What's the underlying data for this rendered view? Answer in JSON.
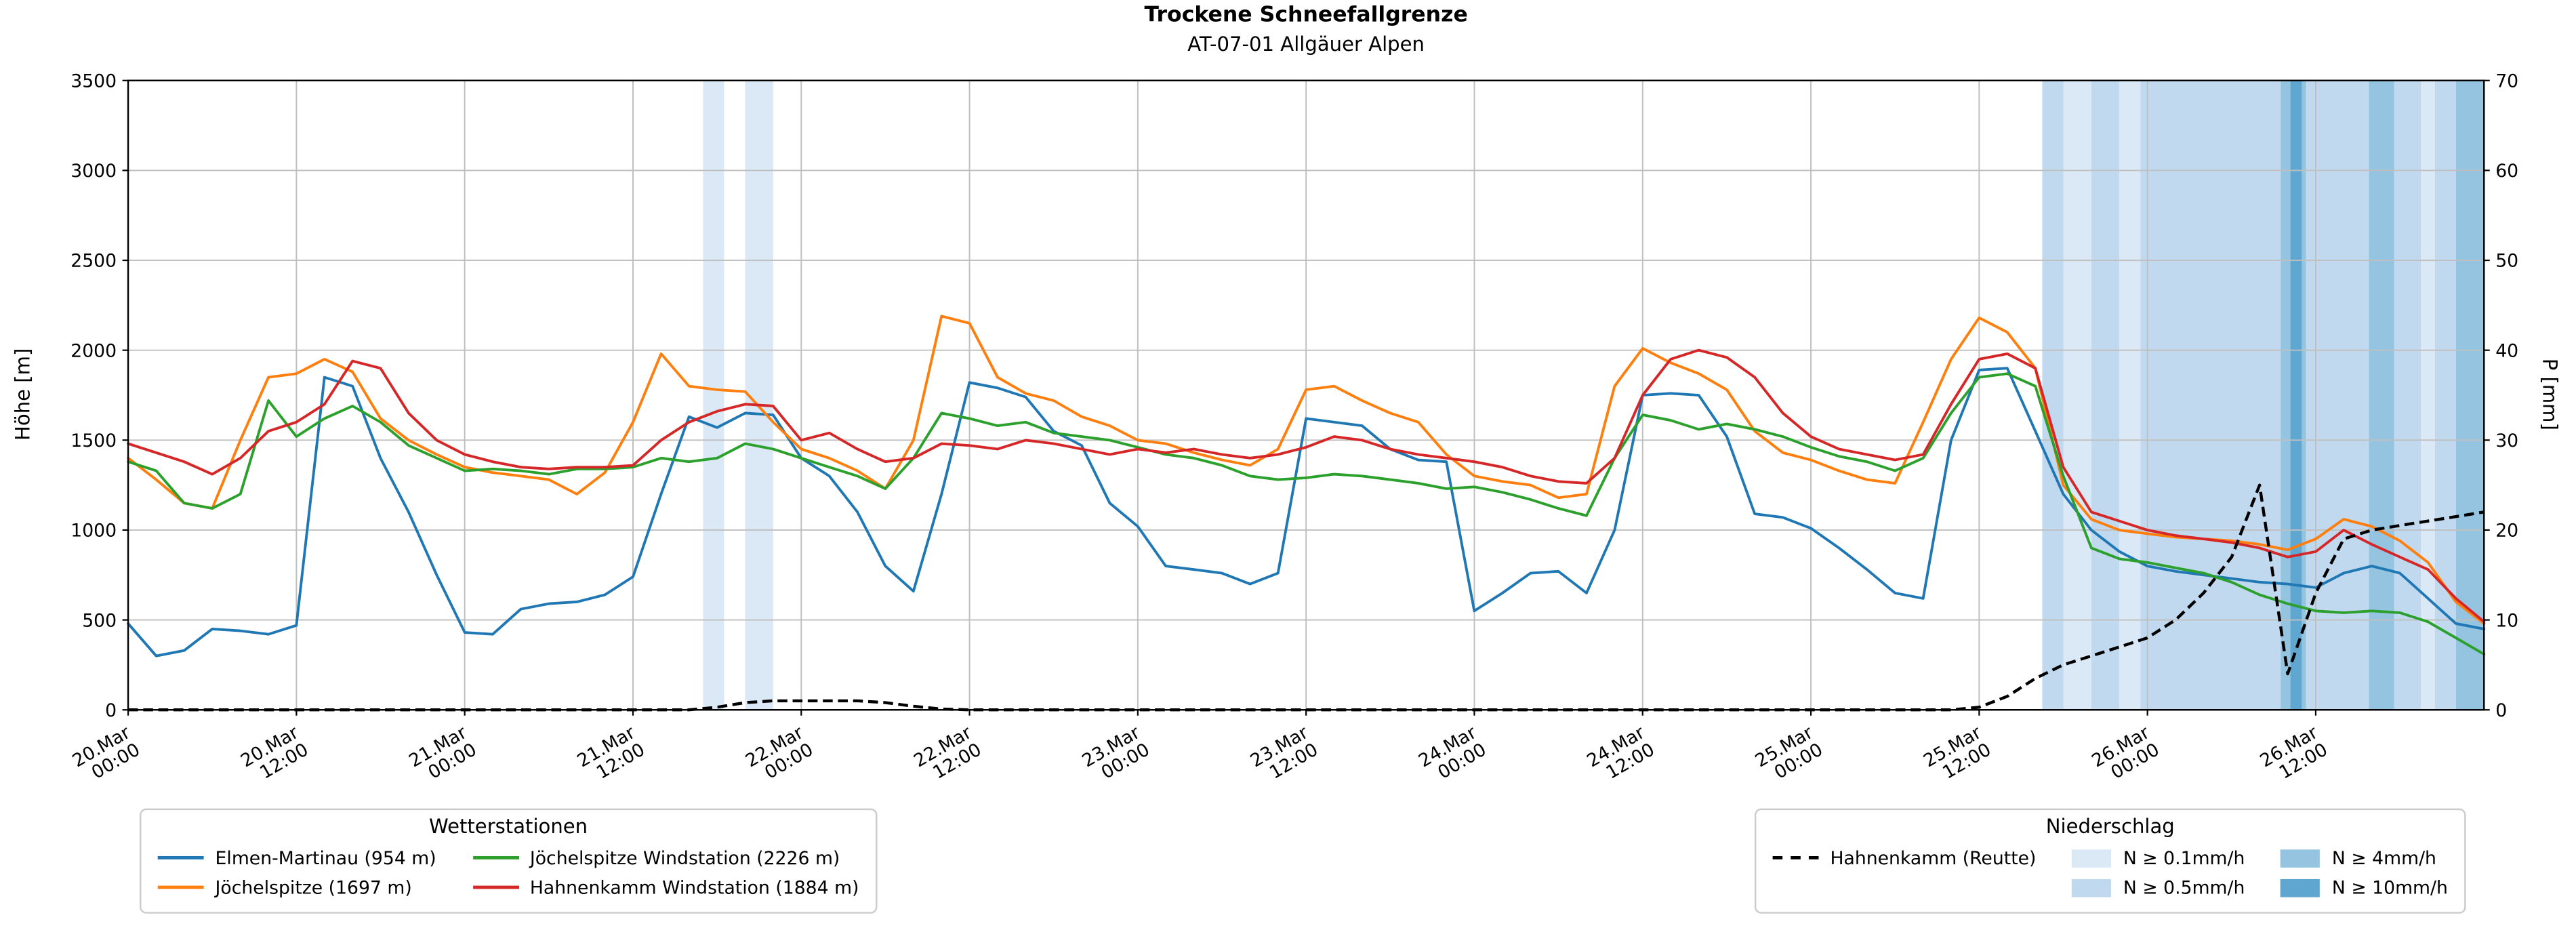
{
  "axes": {
    "y_left_label": "Höhe [m]",
    "y_right_label": "P [mm]"
  },
  "legends": {
    "stations": {
      "title": "Wetterstationen",
      "entries": [
        {
          "label": "Elmen-Martinau (954 m)",
          "color": "#1f77b4"
        },
        {
          "label": "Jöchelspitze (1697 m)",
          "color": "#ff7f0e"
        },
        {
          "label": "Jöchelspitze Windstation (2226 m)",
          "color": "#2ca02c"
        },
        {
          "label": "Hahnenkamm Windstation (1884 m)",
          "color": "#d62728"
        }
      ]
    },
    "precip": {
      "title": "Niederschlag",
      "line_entry": {
        "label": "Hahnenkamm (Reutte)",
        "color": "#000000",
        "dashed": true
      },
      "patch_entries": [
        {
          "label": "N ≥ 0.1mm/h",
          "color": "#dbe9f6"
        },
        {
          "label": "N ≥ 0.5mm/h",
          "color": "#c1d9ee"
        },
        {
          "label": "N ≥ 4mm/h",
          "color": "#94c4df"
        },
        {
          "label": "N ≥ 10mm/h",
          "color": "#5fa6d1"
        }
      ]
    }
  },
  "chart_data": {
    "type": "line",
    "title": "Trockene Schneefallgrenze",
    "subtitle": "AT-07-01 Allgäuer Alpen",
    "ylabel_left": "Höhe [m]",
    "ylabel_right": "P [mm]",
    "x_unit": "hours since 20.Mar 00:00",
    "x_start": 0,
    "x_step": 2,
    "x_range": [
      0,
      168
    ],
    "ylim_left": [
      0,
      3500
    ],
    "ylim_right": [
      0,
      70
    ],
    "y_left_ticks": [
      0,
      500,
      1000,
      1500,
      2000,
      2500,
      3000,
      3500
    ],
    "y_right_ticks": [
      0,
      10,
      20,
      30,
      40,
      50,
      60,
      70
    ],
    "grid": true,
    "x_ticks": [
      {
        "t": 0,
        "label": [
          "20.Mar",
          "00:00"
        ]
      },
      {
        "t": 12,
        "label": [
          "20.Mar",
          "12:00"
        ]
      },
      {
        "t": 24,
        "label": [
          "21.Mar",
          "00:00"
        ]
      },
      {
        "t": 36,
        "label": [
          "21.Mar",
          "12:00"
        ]
      },
      {
        "t": 48,
        "label": [
          "22.Mar",
          "00:00"
        ]
      },
      {
        "t": 60,
        "label": [
          "22.Mar",
          "12:00"
        ]
      },
      {
        "t": 72,
        "label": [
          "23.Mar",
          "00:00"
        ]
      },
      {
        "t": 84,
        "label": [
          "23.Mar",
          "12:00"
        ]
      },
      {
        "t": 96,
        "label": [
          "24.Mar",
          "00:00"
        ]
      },
      {
        "t": 108,
        "label": [
          "24.Mar",
          "12:00"
        ]
      },
      {
        "t": 120,
        "label": [
          "25.Mar",
          "00:00"
        ]
      },
      {
        "t": 132,
        "label": [
          "25.Mar",
          "12:00"
        ]
      },
      {
        "t": 144,
        "label": [
          "26.Mar",
          "00:00"
        ]
      },
      {
        "t": 156,
        "label": [
          "26.Mar",
          "12:00"
        ]
      }
    ],
    "series": [
      {
        "id": "elmen-martinau",
        "name": "Elmen-Martinau (954 m)",
        "color": "#1f77b4",
        "axis": "left",
        "values": [
          480,
          300,
          330,
          450,
          440,
          420,
          470,
          1850,
          1800,
          1400,
          1100,
          750,
          430,
          420,
          560,
          590,
          600,
          640,
          740,
          1200,
          1630,
          1570,
          1650,
          1640,
          1400,
          1300,
          1100,
          800,
          660,
          1200,
          1820,
          1790,
          1740,
          1550,
          1470,
          1150,
          1020,
          800,
          780,
          760,
          700,
          760,
          1620,
          1600,
          1580,
          1450,
          1390,
          1380,
          550,
          650,
          760,
          770,
          650,
          1000,
          1750,
          1760,
          1750,
          1520,
          1090,
          1070,
          1010,
          900,
          780,
          650,
          620,
          1500,
          1890,
          1900,
          1550,
          1200,
          1000,
          880,
          800,
          770,
          750,
          730,
          710,
          700,
          680,
          760,
          800,
          760,
          620,
          480,
          450
        ]
      },
      {
        "id": "joechelspitze",
        "name": "Jöchelspitze (1697 m)",
        "color": "#ff7f0e",
        "axis": "left",
        "values": [
          1400,
          1280,
          1150,
          1120,
          1500,
          1850,
          1870,
          1950,
          1880,
          1620,
          1500,
          1420,
          1350,
          1320,
          1300,
          1280,
          1200,
          1320,
          1600,
          1980,
          1800,
          1780,
          1770,
          1600,
          1450,
          1400,
          1330,
          1230,
          1500,
          2190,
          2150,
          1850,
          1760,
          1720,
          1630,
          1580,
          1500,
          1480,
          1430,
          1390,
          1360,
          1450,
          1780,
          1800,
          1720,
          1650,
          1600,
          1420,
          1300,
          1270,
          1250,
          1180,
          1200,
          1800,
          2010,
          1930,
          1870,
          1780,
          1550,
          1430,
          1390,
          1330,
          1280,
          1260,
          1600,
          1950,
          2180,
          2100,
          1900,
          1250,
          1060,
          1000,
          980,
          960,
          950,
          940,
          920,
          890,
          950,
          1060,
          1020,
          940,
          820,
          600,
          480
        ]
      },
      {
        "id": "joechelspitze-windstation",
        "name": "Jöchelspitze Windstation (2226 m)",
        "color": "#2ca02c",
        "axis": "left",
        "values": [
          1380,
          1330,
          1150,
          1120,
          1200,
          1720,
          1520,
          1620,
          1690,
          1600,
          1470,
          1400,
          1330,
          1340,
          1330,
          1310,
          1340,
          1340,
          1350,
          1400,
          1380,
          1400,
          1480,
          1450,
          1400,
          1350,
          1300,
          1230,
          1400,
          1650,
          1620,
          1580,
          1600,
          1540,
          1520,
          1500,
          1460,
          1420,
          1400,
          1360,
          1300,
          1280,
          1290,
          1310,
          1300,
          1280,
          1260,
          1230,
          1240,
          1210,
          1170,
          1120,
          1080,
          1400,
          1640,
          1610,
          1560,
          1590,
          1560,
          1520,
          1460,
          1410,
          1380,
          1330,
          1400,
          1650,
          1850,
          1870,
          1800,
          1300,
          900,
          840,
          820,
          790,
          760,
          710,
          640,
          590,
          550,
          540,
          550,
          540,
          490,
          400,
          310
        ]
      },
      {
        "id": "hahnenkamm-windstation",
        "name": "Hahnenkamm Windstation (1884 m)",
        "color": "#d62728",
        "axis": "left",
        "values": [
          1480,
          1430,
          1380,
          1310,
          1400,
          1550,
          1600,
          1700,
          1940,
          1900,
          1650,
          1500,
          1420,
          1380,
          1350,
          1340,
          1350,
          1350,
          1360,
          1500,
          1600,
          1660,
          1700,
          1690,
          1500,
          1540,
          1450,
          1380,
          1400,
          1480,
          1470,
          1450,
          1500,
          1480,
          1450,
          1420,
          1450,
          1430,
          1450,
          1420,
          1400,
          1420,
          1460,
          1520,
          1500,
          1450,
          1420,
          1400,
          1380,
          1350,
          1300,
          1270,
          1260,
          1400,
          1750,
          1950,
          2000,
          1960,
          1850,
          1650,
          1520,
          1450,
          1420,
          1390,
          1420,
          1700,
          1950,
          1980,
          1900,
          1350,
          1100,
          1050,
          1000,
          970,
          950,
          930,
          900,
          850,
          880,
          1000,
          920,
          850,
          780,
          620,
          490
        ]
      }
    ],
    "precip_line": {
      "id": "hahnenkamm-reutte",
      "name": "Hahnenkamm (Reutte)",
      "color": "#000000",
      "style": "dashed",
      "axis": "right",
      "values": [
        0,
        0,
        0,
        0,
        0,
        0,
        0,
        0,
        0,
        0,
        0,
        0,
        0,
        0,
        0,
        0,
        0,
        0,
        0,
        0,
        0,
        0.3,
        0.8,
        1,
        1,
        1,
        1,
        0.8,
        0.4,
        0.1,
        0,
        0,
        0,
        0,
        0,
        0,
        0,
        0,
        0,
        0,
        0,
        0,
        0,
        0,
        0,
        0,
        0,
        0,
        0,
        0,
        0,
        0,
        0,
        0,
        0,
        0,
        0,
        0,
        0,
        0,
        0,
        0,
        0,
        0,
        0,
        0,
        0.3,
        1.5,
        3.5,
        5,
        6,
        7,
        8,
        10,
        13,
        17,
        25,
        4,
        13,
        19,
        20,
        20.5,
        21,
        21.5,
        22
      ]
    },
    "band_colors": [
      "#dbe9f6",
      "#c1d9ee",
      "#94c4df",
      "#5fa6d1"
    ],
    "band_levels": [
      "N ≥ 0.1mm/h",
      "N ≥ 0.5mm/h",
      "N ≥ 4mm/h",
      "N ≥ 10mm/h"
    ],
    "precip_bands": [
      {
        "t0": 41,
        "t1": 42.5,
        "level": 1
      },
      {
        "t0": 44,
        "t1": 46,
        "level": 1
      },
      {
        "t0": 136.5,
        "t1": 138,
        "level": 2
      },
      {
        "t0": 138,
        "t1": 140,
        "level": 1
      },
      {
        "t0": 140,
        "t1": 142,
        "level": 2
      },
      {
        "t0": 142,
        "t1": 143.5,
        "level": 1
      },
      {
        "t0": 143.5,
        "t1": 153.5,
        "level": 2
      },
      {
        "t0": 153.5,
        "t1": 155.3,
        "level": 3
      },
      {
        "t0": 154.2,
        "t1": 155,
        "level": 4
      },
      {
        "t0": 155.3,
        "t1": 159.8,
        "level": 2
      },
      {
        "t0": 159.8,
        "t1": 161.6,
        "level": 3
      },
      {
        "t0": 161.6,
        "t1": 163.5,
        "level": 2
      },
      {
        "t0": 163.5,
        "t1": 164.5,
        "level": 1
      },
      {
        "t0": 164.5,
        "t1": 166,
        "level": 2
      },
      {
        "t0": 166,
        "t1": 168,
        "level": 3
      }
    ]
  }
}
